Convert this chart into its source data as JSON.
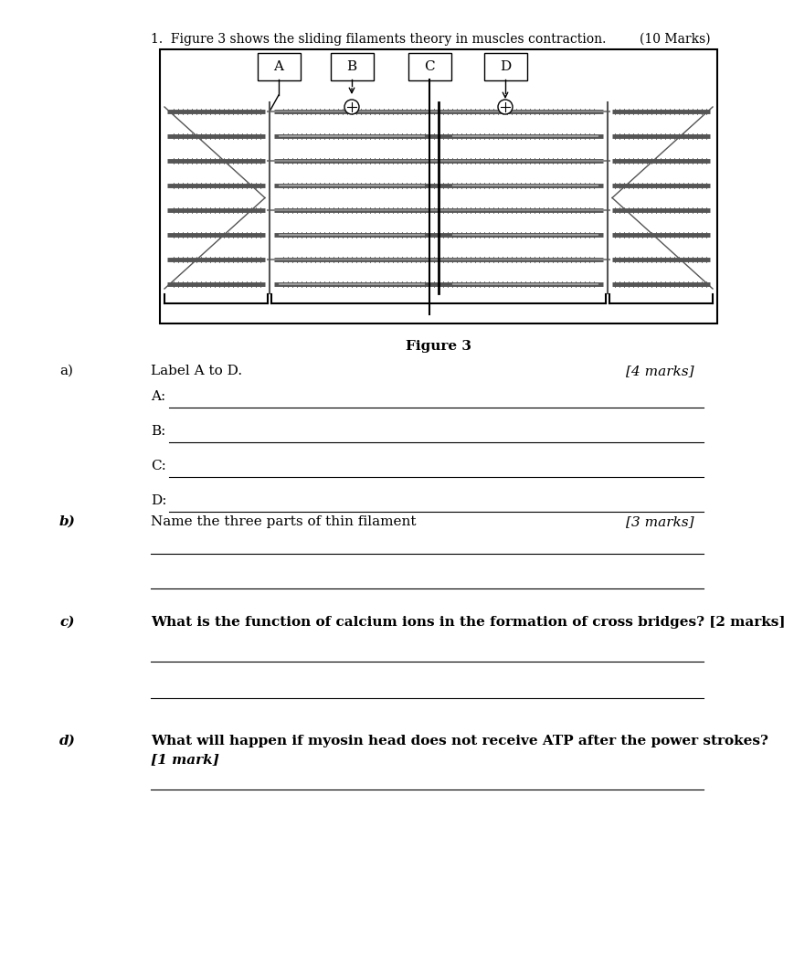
{
  "title": "1.  Figure 3 shows the sliding filaments theory in muscles contraction.",
  "marks_title": "(10 Marks)",
  "figure_caption": "Figure 3",
  "label_boxes": [
    "A",
    "B",
    "C",
    "D"
  ],
  "question_a": "a)",
  "question_a_text": "Label A to D.",
  "question_a_marks": "[4 marks]",
  "answer_lines_a": [
    "A:",
    "B:",
    "C:",
    "D:"
  ],
  "question_b": "b)",
  "question_b_text": "Name the three parts of thin filament",
  "question_b_marks": "[3 marks]",
  "question_c": "c)",
  "question_c_text": "What is the function of calcium ions in the formation of cross bridges? [2 marks]",
  "question_d": "d)",
  "question_d_text": "What will happen if myosin head does not receive ATP after the power strokes?\n[1 mark]",
  "bg_color": "#ffffff",
  "text_color": "#000000",
  "diagram_line_color": "#555555",
  "diagram_bg": "#ffffff"
}
